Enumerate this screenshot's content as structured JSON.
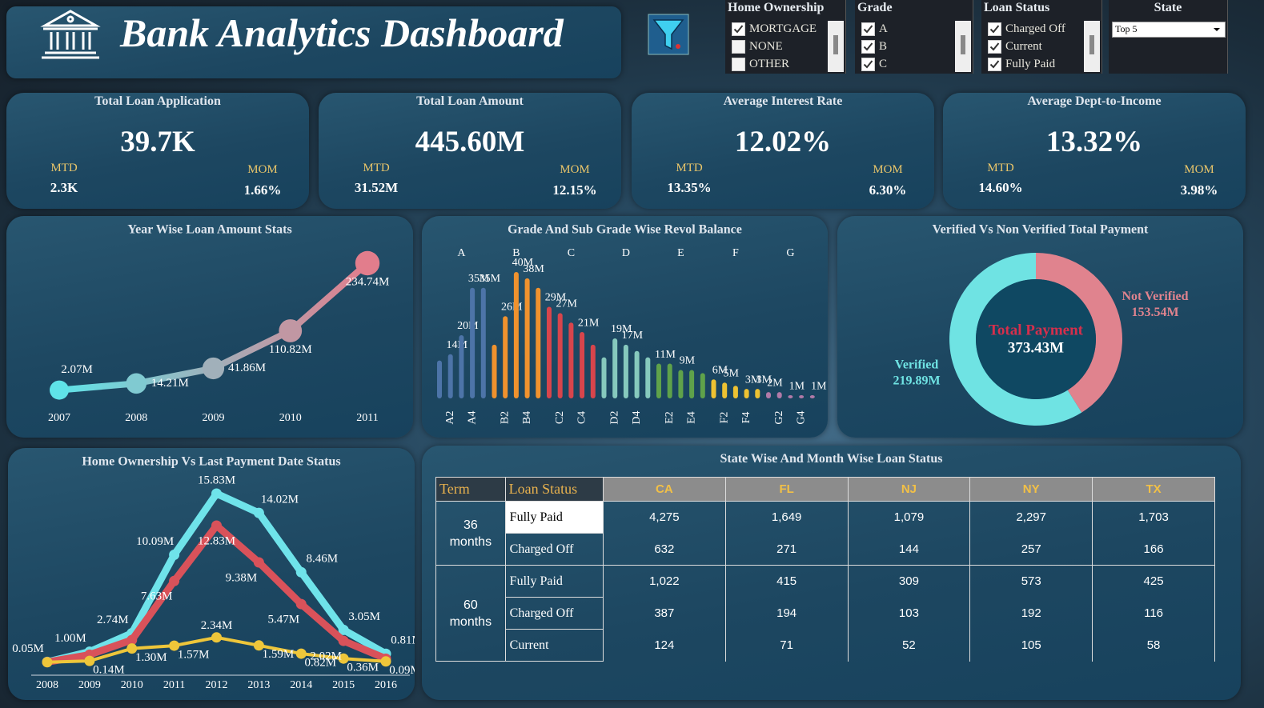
{
  "header": {
    "title": "Bank Analytics Dashboard"
  },
  "filters": [
    {
      "title": "Home Ownership",
      "options": [
        {
          "label": "MORTGAGE",
          "checked": true
        },
        {
          "label": "NONE",
          "checked": false
        },
        {
          "label": "OTHER",
          "checked": false
        }
      ]
    },
    {
      "title": "Grade",
      "options": [
        {
          "label": "A",
          "checked": true
        },
        {
          "label": "B",
          "checked": true
        },
        {
          "label": "C",
          "checked": true
        }
      ]
    },
    {
      "title": "Loan Status",
      "options": [
        {
          "label": "Charged Off",
          "checked": true
        },
        {
          "label": "Current",
          "checked": true
        },
        {
          "label": "Fully Paid",
          "checked": true
        }
      ]
    },
    {
      "title": "State",
      "selected": "Top 5"
    }
  ],
  "kpis": [
    {
      "title": "Total Loan Application",
      "value": "39.7K",
      "mtd_label": "MTD",
      "mtd": "2.3K",
      "mom_label": "MOM",
      "mom": "1.66%"
    },
    {
      "title": "Total Loan Amount",
      "value": "445.60M",
      "mtd_label": "MTD",
      "mtd": "31.52M",
      "mom_label": "MOM",
      "mom": "12.15%"
    },
    {
      "title": "Average Interest Rate",
      "value": "12.02%",
      "mtd_label": "MTD",
      "mtd": "13.35%",
      "mom_label": "MOM",
      "mom": "6.30%"
    },
    {
      "title": "Average Dept-to-Income",
      "value": "13.32%",
      "mtd_label": "MTD",
      "mtd": "14.60%",
      "mom_label": "MOM",
      "mom": "3.98%"
    }
  ],
  "chart_data": [
    {
      "type": "line",
      "title": "Year Wise Loan Amount Stats",
      "x": [
        2007,
        2008,
        2009,
        2010,
        2011
      ],
      "series": [
        {
          "colors": [
            "#5fe3e8",
            "#e27d8c"
          ],
          "values": [
            2.07,
            14.21,
            41.86,
            110.82,
            234.74
          ],
          "value_labels": [
            "2.07M",
            "14.21M",
            "41.86M",
            "110.82M",
            "234.74M"
          ]
        }
      ]
    },
    {
      "type": "bar",
      "title": "Grade And Sub Grade Wise Revol Balance",
      "groups": [
        {
          "label": "A",
          "color": "#4d74a8",
          "categories": [
            null,
            "A2",
            null,
            "A4",
            null
          ],
          "values": [
            12,
            14,
            20,
            35,
            35
          ],
          "value_labels": [
            null,
            "14M",
            "20M",
            "35M",
            "35M"
          ]
        },
        {
          "label": "B",
          "color": "#f0922e",
          "categories": [
            null,
            "B2",
            null,
            "B4",
            null
          ],
          "values": [
            17,
            26,
            40,
            38,
            35
          ],
          "value_labels": [
            null,
            "26M",
            "40M",
            "38M",
            null
          ]
        },
        {
          "label": "C",
          "color": "#d8454c",
          "categories": [
            null,
            "C2",
            null,
            "C4",
            null
          ],
          "values": [
            29,
            27,
            24,
            21,
            17
          ],
          "value_labels": [
            "29M",
            "27M",
            null,
            "21M",
            null
          ]
        },
        {
          "label": "D",
          "color": "#86c9bd",
          "categories": [
            null,
            "D2",
            null,
            "D4",
            null
          ],
          "values": [
            13,
            19,
            17,
            15,
            13
          ],
          "value_labels": [
            null,
            "19M",
            "17M",
            null,
            null
          ]
        },
        {
          "label": "E",
          "color": "#5fa24a",
          "categories": [
            null,
            "E2",
            null,
            "E4",
            null
          ],
          "values": [
            11,
            11,
            9,
            9,
            8
          ],
          "value_labels": [
            "11M",
            null,
            "9M",
            null,
            null
          ]
        },
        {
          "label": "F",
          "color": "#edc232",
          "categories": [
            null,
            "F2",
            null,
            "F4",
            null
          ],
          "values": [
            6,
            5,
            4,
            3,
            3
          ],
          "value_labels": [
            "6M",
            "5M",
            null,
            "3M",
            "3M"
          ]
        },
        {
          "label": "G",
          "color": "#b27aa8",
          "categories": [
            null,
            "G2",
            null,
            "G4",
            null
          ],
          "values": [
            2,
            2,
            1,
            1,
            1
          ],
          "value_labels": [
            "2M",
            null,
            "1M",
            null,
            "1M"
          ]
        }
      ]
    },
    {
      "type": "pie",
      "donut": true,
      "title": "Verified Vs Non Verified Total Payment",
      "categories": [
        "Verified",
        "Not Verified"
      ],
      "values": [
        219.89,
        153.54
      ],
      "value_labels": [
        "219.89M",
        "153.54M"
      ],
      "colors": [
        "#6fe3e3",
        "#e0838e"
      ],
      "center_label": "Total Payment",
      "center_value": "373.43M"
    },
    {
      "type": "line",
      "title": "Home Ownership Vs Last Payment Date Status",
      "x": [
        2008,
        2009,
        2010,
        2011,
        2012,
        2013,
        2014,
        2015,
        2016
      ],
      "series": [
        {
          "color": "#6fe3ea",
          "values": [
            0.05,
            1.0,
            2.74,
            10.09,
            15.83,
            14.02,
            8.46,
            3.05,
            0.81
          ],
          "value_labels": [
            "0.05M",
            "1.00M",
            "2.74M",
            "10.09M",
            "15.83M",
            "14.02M",
            "8.46M",
            "3.05M",
            "0.81M"
          ]
        },
        {
          "color": "#d9525a",
          "values": [
            0.03,
            0.72,
            2.1,
            7.63,
            12.83,
            9.38,
            5.47,
            2.02,
            0.35
          ],
          "value_labels": [
            null,
            null,
            null,
            "7.63M",
            "12.83M",
            "9.38M",
            "5.47M",
            "2.02M",
            null
          ]
        },
        {
          "color": "#eec63a",
          "values": [
            0.02,
            0.14,
            1.3,
            1.57,
            2.34,
            1.59,
            0.82,
            0.36,
            0.09
          ],
          "value_labels": [
            null,
            "0.14M",
            "1.30M",
            "1.57M",
            "2.34M",
            "1.59M",
            "0.82M",
            "0.36M",
            "0.09M"
          ]
        }
      ]
    }
  ],
  "table": {
    "title": "State Wise And Month Wise Loan Status",
    "headers": [
      "Term",
      "Loan Status",
      "CA",
      "FL",
      "NJ",
      "NY",
      "TX"
    ],
    "groups": [
      {
        "term": "36 months",
        "rows": [
          {
            "status": "Fully Paid",
            "cells": [
              "4,275",
              "1,649",
              "1,079",
              "2,297",
              "1,703"
            ]
          },
          {
            "status": "Charged Off",
            "cells": [
              "632",
              "271",
              "144",
              "257",
              "166"
            ]
          }
        ]
      },
      {
        "term": "60 months",
        "rows": [
          {
            "status": "Fully Paid",
            "cells": [
              "1,022",
              "415",
              "309",
              "573",
              "425"
            ]
          },
          {
            "status": "Charged Off",
            "cells": [
              "387",
              "194",
              "103",
              "192",
              "116"
            ]
          },
          {
            "status": "Current",
            "cells": [
              "124",
              "71",
              "52",
              "105",
              "58"
            ]
          }
        ]
      }
    ]
  }
}
